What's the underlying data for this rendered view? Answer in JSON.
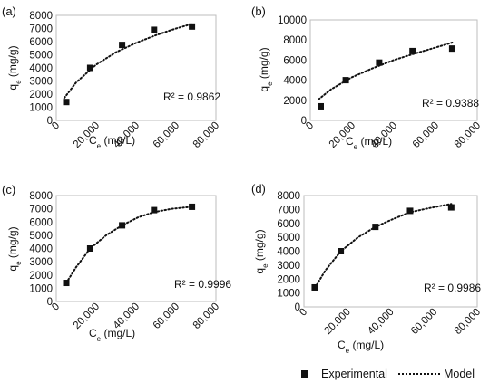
{
  "legend": {
    "experimental_label": "Experimental",
    "model_label": "Model"
  },
  "chart_data": [
    {
      "type": "scatter",
      "panel_label": "(a)",
      "xlabel": "Ce (mg/L)",
      "ylabel": "qe (mg/g)",
      "xlim": [
        0,
        80000
      ],
      "ylim": [
        0,
        8000
      ],
      "x_ticks": [
        "0",
        "20,000",
        "40,000",
        "60,000",
        "80,000"
      ],
      "y_ticks": [
        "0",
        "1000",
        "2000",
        "3000",
        "4000",
        "5000",
        "6000",
        "7000",
        "8000"
      ],
      "r2_label": "R² = 0.9862",
      "series": [
        {
          "name": "Experimental",
          "x": [
            5000,
            17000,
            33000,
            49000,
            68000
          ],
          "y": [
            1400,
            4000,
            5750,
            6900,
            7150
          ]
        },
        {
          "name": "Model",
          "x": [
            4000,
            10000,
            20000,
            30000,
            40000,
            50000,
            60000,
            68000
          ],
          "y": [
            1700,
            2900,
            4250,
            5200,
            5900,
            6500,
            7000,
            7350
          ]
        }
      ]
    },
    {
      "type": "scatter",
      "panel_label": "(b)",
      "xlabel": "Ce (mg/L)",
      "ylabel": "qe (mg/g)",
      "xlim": [
        0,
        80000
      ],
      "ylim": [
        0,
        10000
      ],
      "x_ticks": [
        "0",
        "20,000",
        "40,000",
        "60,000",
        "80,000"
      ],
      "y_ticks": [
        "0",
        "2000",
        "4000",
        "6000",
        "8000",
        "10000"
      ],
      "r2_label": "R² = 0.9388",
      "series": [
        {
          "name": "Experimental",
          "x": [
            5000,
            17000,
            33000,
            49000,
            68000
          ],
          "y": [
            1400,
            4000,
            5750,
            6900,
            7150
          ]
        },
        {
          "name": "Model",
          "x": [
            4000,
            10000,
            20000,
            30000,
            40000,
            50000,
            60000,
            68000
          ],
          "y": [
            2100,
            3100,
            4300,
            5200,
            6000,
            6650,
            7250,
            7750
          ]
        }
      ]
    },
    {
      "type": "scatter",
      "panel_label": "(c)",
      "xlabel": "Ce (mg/L)",
      "ylabel": "qe (mg/g)",
      "xlim": [
        0,
        80000
      ],
      "ylim": [
        0,
        8000
      ],
      "x_ticks": [
        "0",
        "20,000",
        "40,000",
        "60,000",
        "80,000"
      ],
      "y_ticks": [
        "0",
        "1000",
        "2000",
        "3000",
        "4000",
        "5000",
        "6000",
        "7000",
        "8000"
      ],
      "r2_label": "R² = 0.9996",
      "series": [
        {
          "name": "Experimental",
          "x": [
            5000,
            17000,
            33000,
            49000,
            68000
          ],
          "y": [
            1400,
            4000,
            5750,
            6900,
            7150
          ]
        },
        {
          "name": "Model",
          "x": [
            5000,
            10000,
            17000,
            25000,
            33000,
            41000,
            49000,
            58000,
            68000
          ],
          "y": [
            1400,
            2600,
            4000,
            5000,
            5750,
            6350,
            6750,
            7000,
            7150
          ]
        }
      ]
    },
    {
      "type": "scatter",
      "panel_label": "(d)",
      "xlabel": "Ce (mg/L)",
      "ylabel": "qe (mg/g)",
      "xlim": [
        0,
        80000
      ],
      "ylim": [
        0,
        8000
      ],
      "x_ticks": [
        "0",
        "20,000",
        "40,000",
        "60,000",
        "80,000"
      ],
      "y_ticks": [
        "0",
        "1000",
        "2000",
        "3000",
        "4000",
        "5000",
        "6000",
        "7000",
        "8000"
      ],
      "r2_label": "R² = 0.9986",
      "series": [
        {
          "name": "Experimental",
          "x": [
            5000,
            17000,
            33000,
            49000,
            68000
          ],
          "y": [
            1400,
            4000,
            5750,
            6900,
            7150
          ]
        },
        {
          "name": "Model",
          "x": [
            5000,
            10000,
            17000,
            25000,
            33000,
            41000,
            49000,
            58000,
            68000
          ],
          "y": [
            1350,
            2650,
            4000,
            5000,
            5750,
            6300,
            6800,
            7100,
            7400
          ]
        }
      ]
    }
  ]
}
